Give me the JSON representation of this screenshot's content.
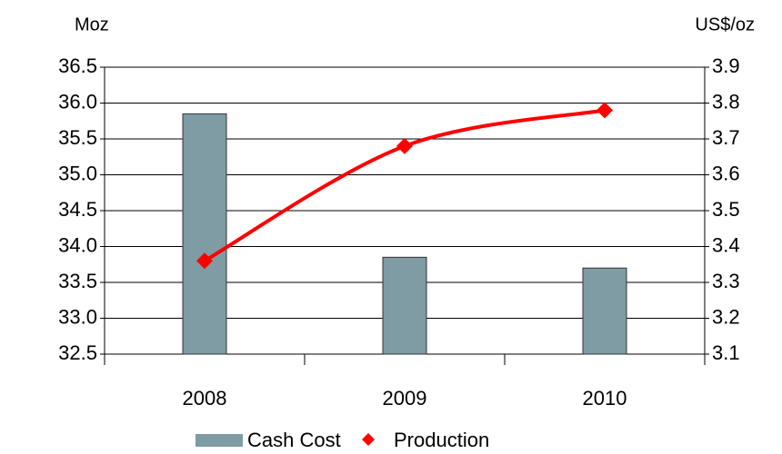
{
  "chart_data": {
    "type": "bar_line",
    "y_label": "Moz",
    "y2_label": "US$/oz",
    "categories": [
      "2008",
      "2009",
      "2010"
    ],
    "series": [
      {
        "name": "Cash Cost",
        "type": "bar",
        "color": "#7f9ba4",
        "values": [
          35.85,
          33.85,
          33.7
        ]
      },
      {
        "name": "Production",
        "type": "line",
        "axis": "y2",
        "color": "#ff0000",
        "values": [
          3.36,
          3.68,
          3.78
        ]
      }
    ],
    "ylim": [
      32.5,
      36.5
    ],
    "yticks": [
      32.5,
      {
        "value": 33,
        "label": "33.0"
      },
      33.5,
      {
        "value": 34,
        "label": "34.0"
      },
      34.5,
      {
        "value": 35,
        "label": "35.0"
      },
      35.5,
      {
        "value": 36,
        "label": "36.0"
      },
      36.5
    ],
    "y2lim": [
      3.1,
      3.9
    ],
    "y2ticks": [
      3.1,
      3.2,
      3.3,
      3.4,
      3.5,
      3.6,
      3.7,
      3.8,
      3.9
    ],
    "grid": true,
    "legend": "bottom"
  }
}
